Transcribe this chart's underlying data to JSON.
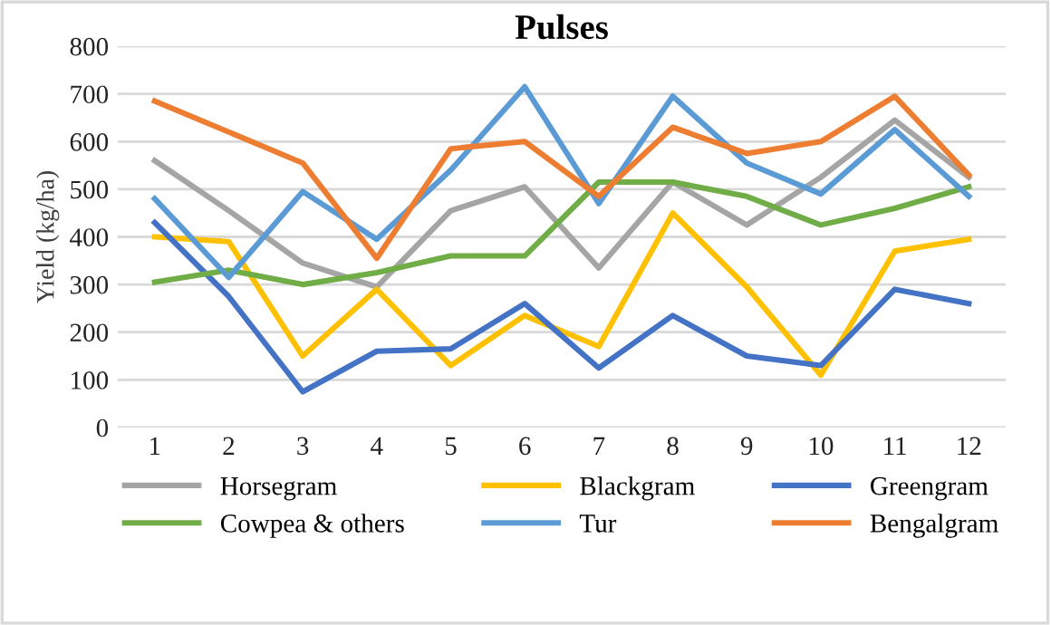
{
  "chart_data": {
    "type": "line",
    "title": "Pulses",
    "ylabel": "Yield (kg/ha)",
    "categories": [
      "1",
      "2",
      "3",
      "4",
      "5",
      "6",
      "7",
      "8",
      "9",
      "10",
      "11",
      "12"
    ],
    "series": [
      {
        "name": "Horsegram",
        "color": "#a5a5a5",
        "values": [
          560,
          455,
          345,
          295,
          455,
          505,
          335,
          515,
          425,
          525,
          645,
          525
        ]
      },
      {
        "name": "Blackgram",
        "color": "#ffc000",
        "values": [
          400,
          390,
          150,
          290,
          130,
          235,
          170,
          450,
          295,
          110,
          370,
          395
        ]
      },
      {
        "name": "Greengram",
        "color": "#4472c4",
        "values": [
          430,
          275,
          75,
          160,
          165,
          260,
          125,
          235,
          150,
          130,
          290,
          260
        ]
      },
      {
        "name": "Cowpea & others",
        "color": "#70ad47",
        "values": [
          305,
          330,
          300,
          325,
          360,
          360,
          515,
          515,
          485,
          425,
          460,
          505
        ]
      },
      {
        "name": "Tur",
        "color": "#5b9bd5",
        "values": [
          480,
          315,
          495,
          395,
          540,
          715,
          470,
          695,
          555,
          490,
          625,
          485
        ]
      },
      {
        "name": "Bengalgram",
        "color": "#ed7d31",
        "values": [
          685,
          620,
          555,
          355,
          585,
          600,
          485,
          630,
          575,
          600,
          695,
          530
        ]
      }
    ],
    "ylim": [
      0,
      800
    ],
    "yticks": [
      0,
      100,
      200,
      300,
      400,
      500,
      600,
      700,
      800
    ],
    "grid": "y",
    "legend": "bottom",
    "marker": "none",
    "line_style": "solid"
  }
}
